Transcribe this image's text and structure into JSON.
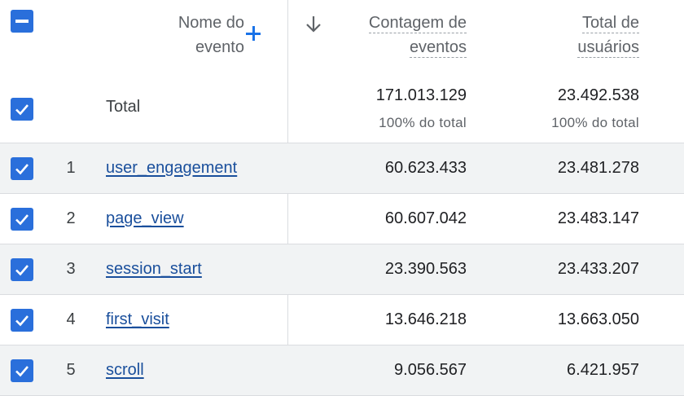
{
  "header": {
    "dimension_title_line1": "Nome do",
    "dimension_title_line2": "evento",
    "metric1_line1": "Contagem de",
    "metric1_line2": "eventos",
    "metric2_line1": "Total de",
    "metric2_line2": "usuários",
    "sort_direction": "descending",
    "accent_color": "#1a73e8"
  },
  "totals": {
    "label": "Total",
    "metric1_value": "171.013.129",
    "metric1_pct": "100% do total",
    "metric2_value": "23.492.538",
    "metric2_pct": "100% do total"
  },
  "rows": [
    {
      "index": "1",
      "name": "user_engagement",
      "metric1": "60.623.433",
      "metric2": "23.481.278",
      "checked": true
    },
    {
      "index": "2",
      "name": "page_view",
      "metric1": "60.607.042",
      "metric2": "23.483.147",
      "checked": true
    },
    {
      "index": "3",
      "name": "session_start",
      "metric1": "23.390.563",
      "metric2": "23.433.207",
      "checked": true
    },
    {
      "index": "4",
      "name": "first_visit",
      "metric1": "13.646.218",
      "metric2": "13.663.050",
      "checked": true
    },
    {
      "index": "5",
      "name": "scroll",
      "metric1": "9.056.567",
      "metric2": "6.421.957",
      "checked": true
    }
  ]
}
